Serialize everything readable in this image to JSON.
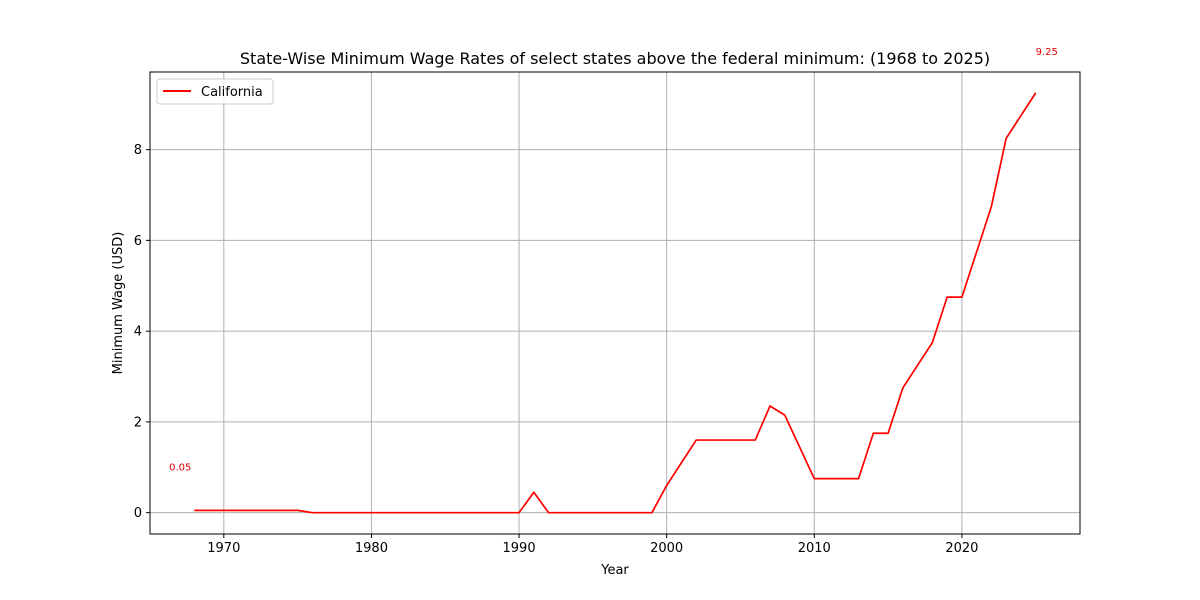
{
  "chart_data": {
    "type": "line",
    "title": "State-Wise Minimum Wage Rates of select states above the federal minimum: (1968 to 2025)",
    "xlabel": "Year",
    "ylabel": "Minimum Wage (USD)",
    "xlim": [
      1965,
      2028
    ],
    "ylim": [
      -0.47,
      9.71
    ],
    "xticks": [
      1970,
      1980,
      1990,
      2000,
      2010,
      2020
    ],
    "yticks": [
      0,
      2,
      4,
      6,
      8
    ],
    "grid": true,
    "legend_position": "top-left",
    "series": [
      {
        "name": "California",
        "color": "#ff0000",
        "x": [
          1968,
          1969,
          1970,
          1971,
          1972,
          1973,
          1974,
          1975,
          1976,
          1977,
          1978,
          1979,
          1980,
          1981,
          1982,
          1983,
          1984,
          1985,
          1986,
          1987,
          1988,
          1989,
          1990,
          1991,
          1992,
          1993,
          1994,
          1995,
          1996,
          1997,
          1998,
          1999,
          2000,
          2001,
          2002,
          2003,
          2004,
          2005,
          2006,
          2007,
          2008,
          2009,
          2010,
          2011,
          2012,
          2013,
          2014,
          2015,
          2016,
          2017,
          2018,
          2019,
          2020,
          2021,
          2022,
          2023,
          2024,
          2025
        ],
        "y": [
          0.05,
          0.05,
          0.05,
          0.05,
          0.05,
          0.05,
          0.05,
          0.05,
          0.0,
          0.0,
          0.0,
          0.0,
          0.0,
          0.0,
          0.0,
          0.0,
          0.0,
          0.0,
          0.0,
          0.0,
          0.0,
          0.0,
          0.0,
          0.45,
          0.0,
          0.0,
          0.0,
          0.0,
          0.0,
          0.0,
          0.0,
          0.0,
          0.6,
          1.1,
          1.6,
          1.6,
          1.6,
          1.6,
          1.6,
          2.35,
          2.15,
          1.45,
          0.75,
          0.75,
          0.75,
          0.75,
          1.75,
          1.75,
          2.75,
          3.25,
          3.75,
          4.75,
          4.75,
          5.75,
          6.75,
          8.25,
          8.75,
          9.25
        ]
      }
    ],
    "annotations": [
      {
        "text": "0.05",
        "x": 1968,
        "y": 0.05,
        "color": "#dd0000",
        "placement": "above-left"
      },
      {
        "text": "9.25",
        "x": 2025,
        "y": 9.25,
        "color": "#dd0000",
        "placement": "above"
      }
    ]
  }
}
